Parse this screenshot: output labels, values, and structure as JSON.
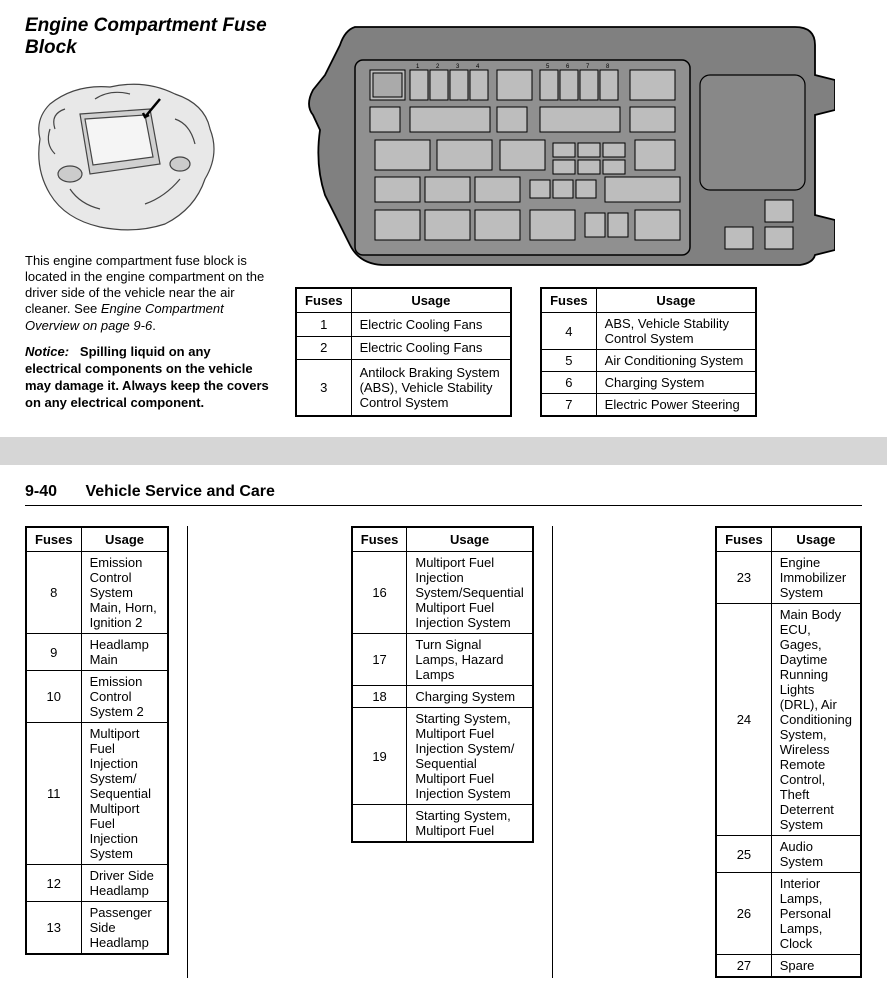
{
  "section": {
    "title": "Engine Compartment Fuse Block",
    "description_before": "This engine compartment fuse block is located in the engine compartment on the driver side of the vehicle near the air cleaner. See ",
    "description_em": "Engine Compartment Overview on page 9-6",
    "description_after": ".",
    "notice_label": "Notice:",
    "notice_text": "Spilling liquid on any electrical components on the vehicle may damage it. Always keep the covers on any electrical component."
  },
  "table_headers": {
    "fuses": "Fuses",
    "usage": "Usage"
  },
  "tables": {
    "t1": [
      {
        "n": "1",
        "u": "Electric Cooling Fans"
      },
      {
        "n": "2",
        "u": "Electric Cooling Fans"
      },
      {
        "n": "3",
        "u": "Antilock Braking System (ABS), Vehicle Stability Control System"
      }
    ],
    "t2": [
      {
        "n": "4",
        "u": "ABS, Vehicle Stability Control System"
      },
      {
        "n": "5",
        "u": "Air Conditioning System"
      },
      {
        "n": "6",
        "u": "Charging System"
      },
      {
        "n": "7",
        "u": "Electric Power Steering"
      }
    ],
    "t3": [
      {
        "n": "8",
        "u": "Emission Control System Main, Horn, Ignition 2"
      },
      {
        "n": "9",
        "u": "Headlamp Main"
      },
      {
        "n": "10",
        "u": "Emission Control System 2"
      },
      {
        "n": "11",
        "u": "Multiport Fuel Injection System/ Sequential Multiport Fuel Injection System"
      },
      {
        "n": "12",
        "u": "Driver Side Headlamp"
      },
      {
        "n": "13",
        "u": "Passenger Side Headlamp"
      }
    ],
    "t4": [
      {
        "n": "16",
        "u": "Multiport Fuel Injection System/Sequential Multiport Fuel Injection System"
      },
      {
        "n": "17",
        "u": "Turn Signal Lamps, Hazard Lamps"
      },
      {
        "n": "18",
        "u": "Charging System"
      },
      {
        "n": "19",
        "u": "Starting System, Multiport Fuel Injection System/ Sequential Multiport Fuel Injection System"
      },
      {
        "n": "",
        "u": "Starting System, Multiport Fuel"
      }
    ],
    "t5": [
      {
        "n": "23",
        "u": "Engine Immobilizer System"
      },
      {
        "n": "24",
        "u": "Main Body ECU, Gages, Daytime Running Lights (DRL), Air Conditioning System, Wireless Remote Control, Theft Deterrent System"
      },
      {
        "n": "25",
        "u": "Audio System"
      },
      {
        "n": "26",
        "u": "Interior Lamps, Personal Lamps, Clock"
      },
      {
        "n": "27",
        "u": "Spare"
      }
    ]
  },
  "page2": {
    "pagenum": "9-40",
    "title": "Vehicle Service and Care"
  },
  "colors": {
    "text": "#000000",
    "background": "#ffffff",
    "divider": "#d6d6d6",
    "diagram_fill": "#808080",
    "diagram_light": "#c0c0c0",
    "diagram_line": "#000000"
  }
}
